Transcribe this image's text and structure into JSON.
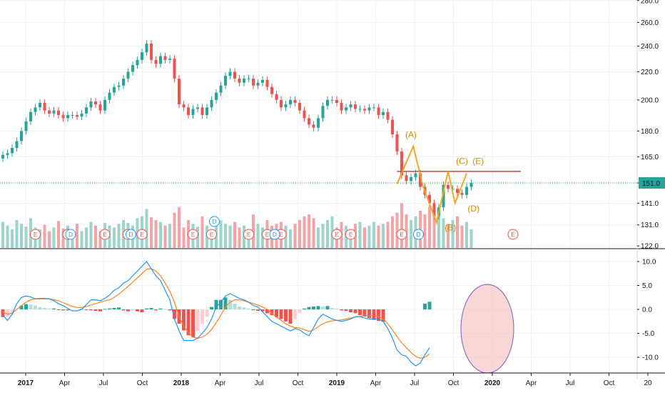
{
  "chart_data": [
    {
      "type": "candlestick",
      "panel": "price",
      "price_axis_ticks": [
        122.0,
        131.0,
        141.0,
        151.0,
        165.0,
        180.0,
        200.0,
        220.0,
        240.0,
        260.0,
        280.0
      ],
      "last_price_label": "151.0",
      "last_price": 151.0,
      "horizontal_line_price": 157.0,
      "ylim": [
        120,
        282
      ],
      "scale": "log",
      "wave_labels": [
        {
          "text": "(A)",
          "week": 88,
          "price": 176
        },
        {
          "text": "(B)",
          "week": 96.5,
          "price": 128.5
        },
        {
          "text": "(C)",
          "week": 99,
          "price": 161
        },
        {
          "text": "(D)",
          "week": 101.5,
          "price": 137
        },
        {
          "text": "(E)",
          "week": 102.5,
          "price": 161
        }
      ],
      "wave_path": [
        {
          "week": 85,
          "price": 150.5
        },
        {
          "week": 88.5,
          "price": 171
        },
        {
          "week": 90.5,
          "price": 150
        },
        {
          "week": 93.5,
          "price": 132
        },
        {
          "week": 96,
          "price": 157
        },
        {
          "week": 97.5,
          "price": 141
        },
        {
          "week": 100,
          "price": 156
        }
      ],
      "earnings_markers": [
        7,
        14,
        22,
        27,
        30,
        41,
        45,
        53,
        57,
        60,
        72,
        75,
        86,
        103
      ],
      "dividend_markers": [
        14,
        27,
        45,
        58,
        89
      ],
      "future_earnings_marker": 103,
      "close_series": [
        166,
        167,
        170,
        174,
        180,
        186,
        192,
        195,
        198,
        193,
        191,
        193,
        190,
        188,
        190,
        190,
        189,
        191,
        195,
        199,
        197,
        193,
        200,
        205,
        209,
        210,
        215,
        220,
        225,
        229,
        235,
        242,
        229,
        226,
        232,
        229,
        230,
        215,
        197,
        195,
        190,
        194,
        195,
        190,
        195,
        200,
        205,
        210,
        217,
        220,
        215,
        212,
        215,
        215,
        210,
        212,
        214,
        209,
        204,
        200,
        195,
        197,
        200,
        198,
        193,
        188,
        184,
        182,
        188,
        196,
        200,
        200,
        198,
        193,
        195,
        197,
        194,
        194,
        193,
        195,
        195,
        190,
        192,
        187,
        178,
        168,
        155,
        152,
        154,
        156,
        149,
        145,
        141,
        135,
        139,
        150,
        148,
        148,
        146,
        145,
        149,
        151
      ],
      "volume_series": [
        28,
        24,
        20,
        30,
        26,
        23,
        32,
        22,
        20,
        25,
        18,
        22,
        29,
        21,
        24,
        17,
        26,
        18,
        22,
        28,
        24,
        18,
        27,
        24,
        22,
        26,
        30,
        27,
        24,
        32,
        34,
        42,
        33,
        30,
        28,
        24,
        26,
        38,
        44,
        22,
        30,
        26,
        23,
        34,
        24,
        20,
        26,
        30,
        26,
        24,
        28,
        22,
        24,
        20,
        36,
        26,
        22,
        30,
        24,
        26,
        28,
        24,
        20,
        26,
        30,
        34,
        36,
        32,
        22,
        26,
        30,
        34,
        22,
        28,
        24,
        20,
        26,
        28,
        22,
        24,
        28,
        24,
        26,
        28,
        34,
        38,
        48,
        36,
        30,
        34,
        40,
        36,
        44,
        46,
        38,
        32,
        26,
        30,
        34,
        24,
        28,
        20
      ]
    },
    {
      "type": "macd",
      "panel": "indicator",
      "axis_ticks": [
        -10.0,
        -5.0,
        0.0,
        5.0,
        10.0
      ],
      "ylim": [
        -12.8,
        12.8
      ],
      "macd_series": [
        -1.2,
        -2.3,
        -1.0,
        1.2,
        2.5,
        2.8,
        2.6,
        2.2,
        2.3,
        2.3,
        2.2,
        1.8,
        1.2,
        0.8,
        0.2,
        -0.3,
        -0.3,
        0.0,
        1.0,
        2.0,
        2.0,
        1.8,
        2.3,
        3.0,
        4.0,
        4.5,
        5.5,
        6.0,
        7.0,
        8.0,
        9.0,
        10.0,
        8.5,
        7.0,
        6.0,
        4.0,
        2.0,
        -2.0,
        -4.5,
        -6.5,
        -6.5,
        -6.5,
        -6.0,
        -5.0,
        -3.8,
        -2.0,
        0.5,
        1.5,
        2.8,
        3.3,
        2.8,
        2.3,
        2.0,
        1.5,
        0.8,
        0.5,
        -0.5,
        -1.5,
        -2.5,
        -3.0,
        -3.5,
        -4.0,
        -4.5,
        -4.0,
        -4.3,
        -5.0,
        -5.5,
        -3.8,
        -2.0,
        -1.0,
        -1.5,
        -2.0,
        -2.3,
        -2.5,
        -2.3,
        -2.0,
        -1.5,
        -1.5,
        -1.8,
        -2.0,
        -2.0,
        -2.0,
        -2.5,
        -4.0,
        -6.0,
        -8.5,
        -9.5,
        -9.8,
        -11.0,
        -11.8,
        -11.2,
        -9.5,
        -8.0
      ],
      "signal_series": [
        -0.5,
        -1.0,
        -0.8,
        0.0,
        0.8,
        1.5,
        2.0,
        2.2,
        2.2,
        2.2,
        2.2,
        2.0,
        1.8,
        1.4,
        1.0,
        0.6,
        0.4,
        0.4,
        0.6,
        0.9,
        1.2,
        1.5,
        1.8,
        2.0,
        2.5,
        3.2,
        4.0,
        4.8,
        5.7,
        6.6,
        7.5,
        8.4,
        8.5,
        8.0,
        7.0,
        5.5,
        3.8,
        1.5,
        -1.5,
        -3.5,
        -4.8,
        -5.8,
        -6.0,
        -5.8,
        -5.2,
        -4.2,
        -2.8,
        -1.2,
        0.5,
        1.5,
        2.0,
        2.0,
        1.8,
        1.5,
        1.2,
        0.9,
        0.5,
        0.0,
        -0.8,
        -1.6,
        -2.3,
        -3.0,
        -3.5,
        -3.8,
        -3.9,
        -4.2,
        -4.6,
        -4.3,
        -3.6,
        -3.0,
        -2.6,
        -2.4,
        -2.3,
        -2.2,
        -2.0,
        -1.8,
        -1.6,
        -1.5,
        -1.3,
        -1.3,
        -1.3,
        -1.5,
        -2.0,
        -3.0,
        -4.3,
        -5.7,
        -7.0,
        -8.0,
        -9.0,
        -9.8,
        -10.2,
        -10.0,
        -9.3
      ],
      "histogram_series": [
        -1.6,
        -1.5,
        -1.1,
        0.0,
        0.8,
        1.1,
        1.0,
        0.8,
        0.5,
        0.3,
        0.2,
        0.2,
        -0.1,
        -0.2,
        -0.2,
        0.0,
        0.0,
        0.1,
        -0.1,
        -0.2,
        -0.3,
        -0.4,
        0.1,
        0.2,
        0.3,
        0.4,
        -0.2,
        -0.4,
        -0.3,
        -0.4,
        -0.6,
        0.2,
        0.3,
        -0.2,
        0.2,
        0.1,
        -0.2,
        -2.0,
        -3.0,
        -4.4,
        -5.4,
        -5.8,
        -4.5,
        -3.0,
        -1.5,
        0.5,
        2.0,
        2.0,
        2.5,
        2.0,
        1.2,
        0.6,
        0.4,
        0.2,
        -0.1,
        -0.3,
        -0.4,
        -0.8,
        -1.2,
        -1.6,
        -2.0,
        -2.5,
        -3.0,
        -2.0,
        -0.8,
        0.2,
        0.5,
        0.6,
        0.7,
        0.6,
        0.7,
        0.3,
        0.2,
        -0.2,
        -0.3,
        -0.6,
        -0.8,
        -1.2,
        -1.5,
        -1.8,
        -2.2,
        -2.4,
        -2.6,
        0.0,
        0.0,
        0.0,
        0.0,
        0.0,
        0.0,
        0.0,
        0.0,
        1.2,
        1.6
      ],
      "highlight_ellipse": true
    }
  ],
  "time_axis": {
    "labels": [
      {
        "text": "2017",
        "week": 1.5,
        "bold": true
      },
      {
        "text": "Apr",
        "week": 14.5,
        "bold": false
      },
      {
        "text": "Jul",
        "week": 27.5,
        "bold": false
      },
      {
        "text": "Oct",
        "week": 40.5,
        "bold": false
      },
      {
        "text": "2018",
        "week": 53.5,
        "bold": true
      },
      {
        "text": "Apr",
        "week": 66.5,
        "bold": false
      },
      {
        "text": "Jul",
        "week": 79.5,
        "bold": false
      },
      {
        "text": "Oct",
        "week": 92.5,
        "bold": false
      },
      {
        "text": "2019",
        "week": 105.5,
        "bold": true
      },
      {
        "text": "Apr",
        "week": 118.5,
        "bold": false
      },
      {
        "text": "Jul",
        "week": 131.5,
        "bold": false
      },
      {
        "text": "Oct",
        "week": 144.5,
        "bold": false
      },
      {
        "text": "2020",
        "week": 157.5,
        "bold": true
      },
      {
        "text": "Apr",
        "week": 170.5,
        "bold": false
      },
      {
        "text": "Jul",
        "week": 183.5,
        "bold": false
      },
      {
        "text": "Oct",
        "week": 196.5,
        "bold": false
      },
      {
        "text": "20",
        "week": 209.5,
        "bold": false
      }
    ],
    "wave_earnings_letter": "E",
    "dividend_letter": "D"
  },
  "colors": {
    "up": "#26a69a",
    "down": "#ef5350",
    "up_volume": "#9bd5cc",
    "down_volume": "#f5a4a5",
    "macd_line": "#2196f3",
    "signal_line": "#ff7f1f",
    "hist_up_strong": "#26a69a",
    "hist_up_weak": "#b2dfdb",
    "hist_down_strong": "#ef5350",
    "hist_down_weak": "#ffcdd2",
    "resistance_line": "#e53935",
    "wave": "#f5a623",
    "last_price_tag": "#26a69a",
    "ellipse_fill": "#f4b6b7",
    "ellipse_stroke": "#7e57c2"
  }
}
